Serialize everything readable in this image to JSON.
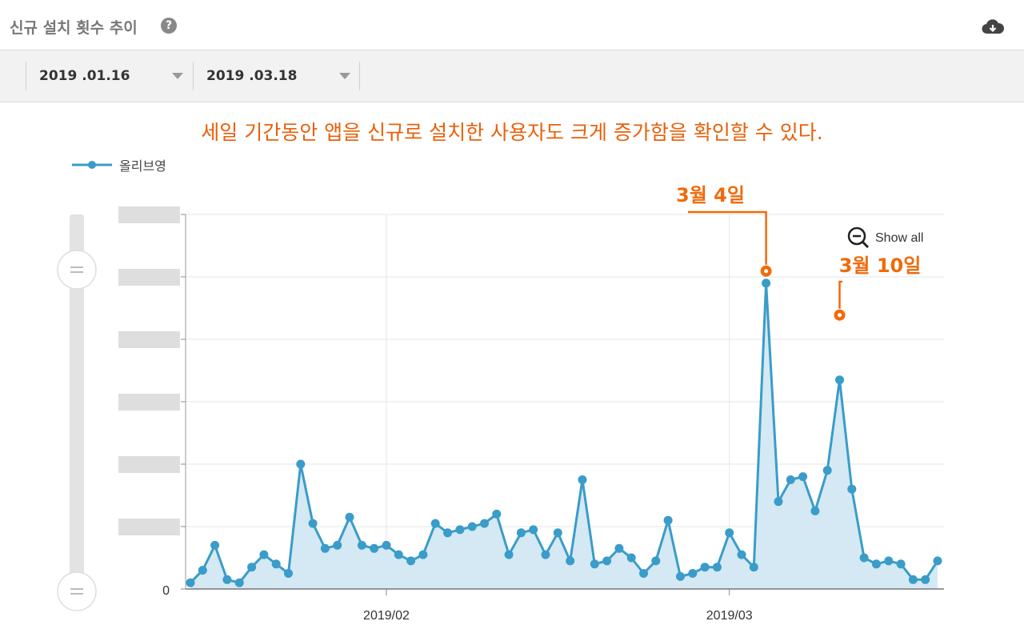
{
  "header": {
    "title": "신규 설치 횟수 추이",
    "help_icon": "question-circle-icon",
    "download_icon": "cloud-download-icon"
  },
  "filters": {
    "start_date": "2019 .01.16",
    "end_date": "2019 .03.18"
  },
  "annotation": "세일 기간동안 앱을 신규로 설치한 사용자도 크게 증가함을 확인할 수 있다.",
  "show_all_label": "Show all",
  "callouts": [
    {
      "label": "3월 4일",
      "x": "2019-03-04"
    },
    {
      "label": "3월 10일",
      "x": "2019-03-10"
    }
  ],
  "colors": {
    "series": "#3a9cc9",
    "area": "#d4e9f3",
    "accent": "#f06a0a"
  },
  "chart_data": {
    "type": "area",
    "x_start": "2019-01-16",
    "x_end": "2019-03-18",
    "xticks": [
      "2019/02",
      "2019/03"
    ],
    "y_tick_labels": [
      "0"
    ],
    "ylim": [
      0,
      60
    ],
    "grid": true,
    "legend": {
      "position": "top-left"
    },
    "series": [
      {
        "name": "올리브영",
        "values": [
          1,
          3,
          7,
          1.5,
          1,
          3.5,
          5.5,
          4,
          2.5,
          20,
          10.5,
          6.5,
          7,
          11.5,
          7,
          6.5,
          7,
          5.5,
          4.5,
          5.5,
          10.5,
          9,
          9.5,
          10,
          10.5,
          12,
          5.5,
          9,
          9.5,
          5.5,
          9,
          4.5,
          17.5,
          4,
          4.5,
          6.5,
          5,
          2.5,
          4.5,
          11,
          2,
          2.5,
          3.5,
          3.5,
          9,
          5.5,
          3.5,
          49,
          14,
          17.5,
          18,
          12.5,
          19,
          33.5,
          16,
          5,
          4,
          4.5,
          4,
          1.5,
          1.5,
          4.5
        ]
      }
    ]
  }
}
